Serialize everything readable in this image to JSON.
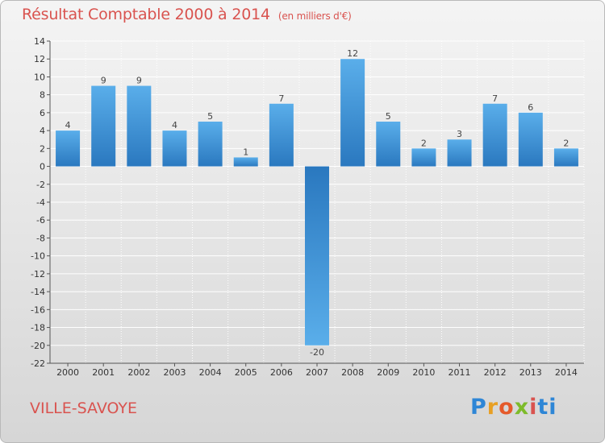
{
  "title": "Résultat Comptable 2000 à 2014",
  "subtitle": "(en milliers d'€)",
  "town": "VILLE-SAVOYE",
  "logo": [
    "P",
    "r",
    "o",
    "x",
    "i",
    "ti"
  ],
  "colors": {
    "bar_light": "#5aaeea",
    "bar_dark": "#2a78bf",
    "title": "#d9534f",
    "grid": "#ffffff"
  },
  "chart_data": {
    "type": "bar",
    "title": "Résultat Comptable 2000 à 2014",
    "ylabel": "en milliers d'€",
    "xlabel": "",
    "categories": [
      "2000",
      "2001",
      "2002",
      "2003",
      "2004",
      "2005",
      "2006",
      "2007",
      "2008",
      "2009",
      "2010",
      "2011",
      "2012",
      "2013",
      "2014"
    ],
    "values": [
      4,
      9,
      9,
      4,
      5,
      1,
      7,
      -20,
      12,
      5,
      2,
      3,
      7,
      6,
      2
    ],
    "ylim": [
      -22,
      14
    ],
    "yticks": [
      14,
      12,
      10,
      8,
      6,
      4,
      2,
      0,
      -2,
      -4,
      -6,
      -8,
      -10,
      -12,
      -14,
      -16,
      -18,
      -20,
      -22
    ],
    "grid": true
  }
}
